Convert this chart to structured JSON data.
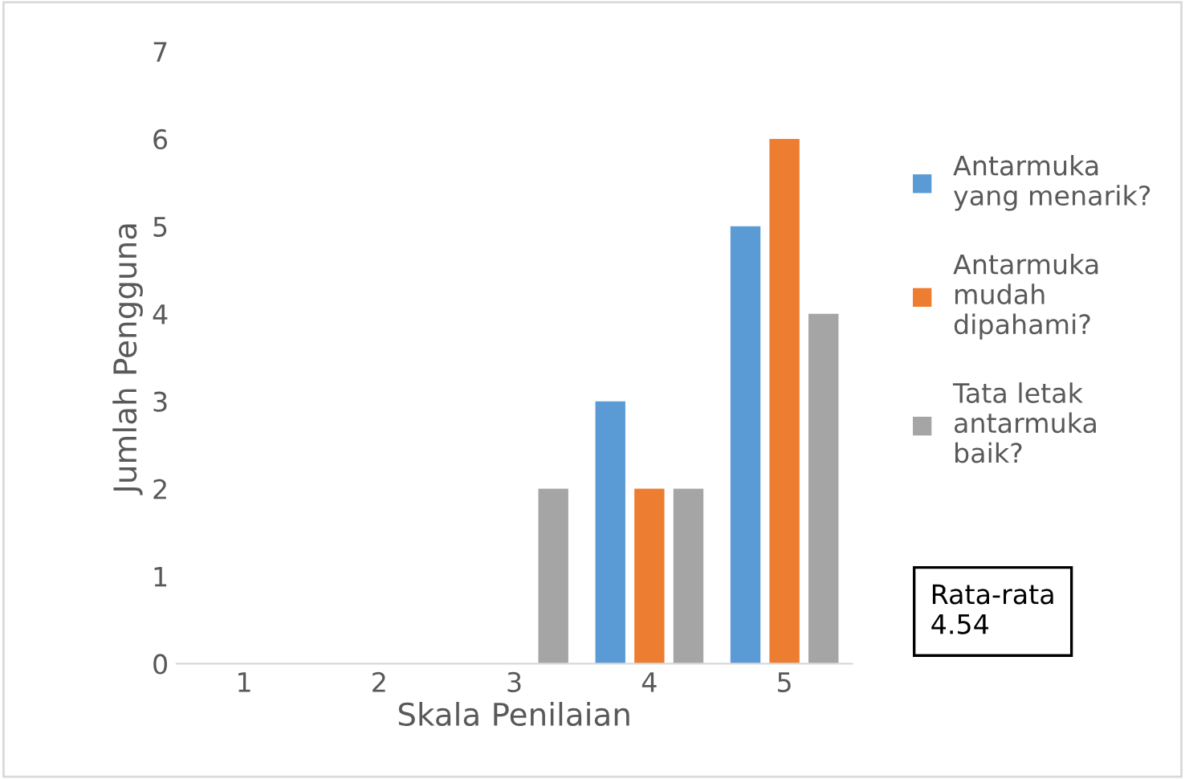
{
  "chart_data": {
    "type": "bar",
    "xlabel": "Skala Penilaian",
    "ylabel": "Jumlah Pengguna",
    "categories": [
      "1",
      "2",
      "3",
      "4",
      "5"
    ],
    "series": [
      {
        "name": "Antarmuka\nyang menarik?",
        "color": "#5b9bd5",
        "values": [
          0,
          0,
          0,
          3,
          5
        ]
      },
      {
        "name": "Antarmuka\nmudah\ndipahami?",
        "color": "#ed7d31",
        "values": [
          0,
          0,
          0,
          2,
          6
        ]
      },
      {
        "name": "Tata letak\nantarmuka\nbaik?",
        "color": "#a5a5a5",
        "values": [
          0,
          0,
          2,
          2,
          4
        ]
      }
    ],
    "ylim": [
      0,
      7
    ],
    "yticks": [
      0,
      1,
      2,
      3,
      4,
      5,
      6,
      7
    ],
    "grid": false,
    "legend": "right",
    "annotations": [
      "Rata-rata\n4.54"
    ]
  }
}
